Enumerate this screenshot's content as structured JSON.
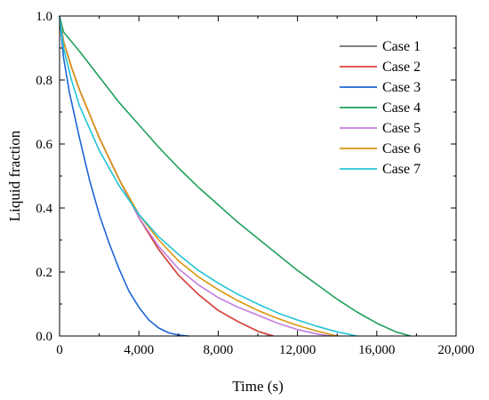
{
  "chart_data": {
    "type": "line",
    "xlabel": "Time (s)",
    "ylabel": "Liquid fraction",
    "xlim": [
      0,
      20000
    ],
    "ylim": [
      0,
      1.0
    ],
    "x_ticks": [
      0,
      4000,
      8000,
      12000,
      16000,
      20000
    ],
    "x_tick_labels": [
      "0",
      "4,000",
      "8,000",
      "12,000",
      "16,000",
      "20,000"
    ],
    "y_ticks": [
      0,
      0.2,
      0.4,
      0.6,
      0.8,
      1.0
    ],
    "y_tick_labels": [
      "0.0",
      "0.2",
      "0.4",
      "0.6",
      "0.8",
      "1.0"
    ],
    "grid": false,
    "legend_position": "top-right",
    "series": [
      {
        "name": "Case 1",
        "color": "#6e6e6e",
        "points": [
          [
            0,
            1.0
          ],
          [
            200,
            0.92
          ],
          [
            600,
            0.84
          ],
          [
            1000,
            0.77
          ],
          [
            2000,
            0.62
          ],
          [
            3000,
            0.49
          ],
          [
            4000,
            0.37
          ],
          [
            5000,
            0.27
          ],
          [
            6000,
            0.19
          ],
          [
            7000,
            0.13
          ],
          [
            8000,
            0.08
          ],
          [
            9000,
            0.045
          ],
          [
            10000,
            0.015
          ],
          [
            10700,
            0.0
          ]
        ]
      },
      {
        "name": "Case 2",
        "color": "#e0443c",
        "points": [
          [
            0,
            1.0
          ],
          [
            200,
            0.92
          ],
          [
            600,
            0.84
          ],
          [
            1000,
            0.77
          ],
          [
            2000,
            0.62
          ],
          [
            3000,
            0.49
          ],
          [
            4000,
            0.37
          ],
          [
            5000,
            0.27
          ],
          [
            6000,
            0.19
          ],
          [
            7000,
            0.13
          ],
          [
            8000,
            0.08
          ],
          [
            9000,
            0.045
          ],
          [
            10000,
            0.015
          ],
          [
            10800,
            0.0
          ]
        ]
      },
      {
        "name": "Case 3",
        "color": "#1f64d6",
        "points": [
          [
            0,
            1.0
          ],
          [
            200,
            0.87
          ],
          [
            500,
            0.76
          ],
          [
            1000,
            0.62
          ],
          [
            1500,
            0.49
          ],
          [
            2000,
            0.38
          ],
          [
            2500,
            0.29
          ],
          [
            3000,
            0.21
          ],
          [
            3500,
            0.14
          ],
          [
            4000,
            0.09
          ],
          [
            4500,
            0.05
          ],
          [
            5000,
            0.025
          ],
          [
            5500,
            0.01
          ],
          [
            6000,
            0.003
          ],
          [
            6500,
            0.0
          ]
        ]
      },
      {
        "name": "Case 4",
        "color": "#1fa05c",
        "points": [
          [
            0,
            1.0
          ],
          [
            200,
            0.95
          ],
          [
            1000,
            0.89
          ],
          [
            2000,
            0.81
          ],
          [
            3000,
            0.73
          ],
          [
            4000,
            0.66
          ],
          [
            5000,
            0.59
          ],
          [
            6000,
            0.525
          ],
          [
            7000,
            0.465
          ],
          [
            8000,
            0.41
          ],
          [
            9000,
            0.355
          ],
          [
            10000,
            0.305
          ],
          [
            11000,
            0.255
          ],
          [
            12000,
            0.205
          ],
          [
            13000,
            0.16
          ],
          [
            14000,
            0.115
          ],
          [
            15000,
            0.075
          ],
          [
            16000,
            0.04
          ],
          [
            17000,
            0.012
          ],
          [
            17700,
            0.0
          ]
        ]
      },
      {
        "name": "Case 5",
        "color": "#c17ee0",
        "points": [
          [
            0,
            1.0
          ],
          [
            200,
            0.92
          ],
          [
            600,
            0.84
          ],
          [
            1000,
            0.77
          ],
          [
            2000,
            0.62
          ],
          [
            3000,
            0.49
          ],
          [
            4000,
            0.37
          ],
          [
            5000,
            0.28
          ],
          [
            6000,
            0.21
          ],
          [
            7000,
            0.16
          ],
          [
            8000,
            0.12
          ],
          [
            9000,
            0.09
          ],
          [
            10000,
            0.065
          ],
          [
            11000,
            0.04
          ],
          [
            12000,
            0.02
          ],
          [
            13000,
            0.006
          ],
          [
            13700,
            0.0
          ]
        ]
      },
      {
        "name": "Case 6",
        "color": "#d9960f",
        "points": [
          [
            0,
            1.0
          ],
          [
            200,
            0.92
          ],
          [
            600,
            0.84
          ],
          [
            1000,
            0.77
          ],
          [
            2000,
            0.62
          ],
          [
            3000,
            0.49
          ],
          [
            4000,
            0.38
          ],
          [
            5000,
            0.3
          ],
          [
            6000,
            0.235
          ],
          [
            7000,
            0.185
          ],
          [
            8000,
            0.145
          ],
          [
            9000,
            0.11
          ],
          [
            10000,
            0.08
          ],
          [
            11000,
            0.055
          ],
          [
            12000,
            0.033
          ],
          [
            13000,
            0.015
          ],
          [
            14000,
            0.0
          ]
        ]
      },
      {
        "name": "Case 7",
        "color": "#22c4d6",
        "points": [
          [
            0,
            1.0
          ],
          [
            200,
            0.9
          ],
          [
            600,
            0.8
          ],
          [
            1000,
            0.72
          ],
          [
            2000,
            0.58
          ],
          [
            3000,
            0.47
          ],
          [
            4000,
            0.38
          ],
          [
            5000,
            0.31
          ],
          [
            6000,
            0.255
          ],
          [
            7000,
            0.205
          ],
          [
            8000,
            0.165
          ],
          [
            9000,
            0.13
          ],
          [
            10000,
            0.1
          ],
          [
            11000,
            0.072
          ],
          [
            12000,
            0.05
          ],
          [
            13000,
            0.03
          ],
          [
            14000,
            0.013
          ],
          [
            15000,
            0.0
          ]
        ]
      }
    ]
  }
}
